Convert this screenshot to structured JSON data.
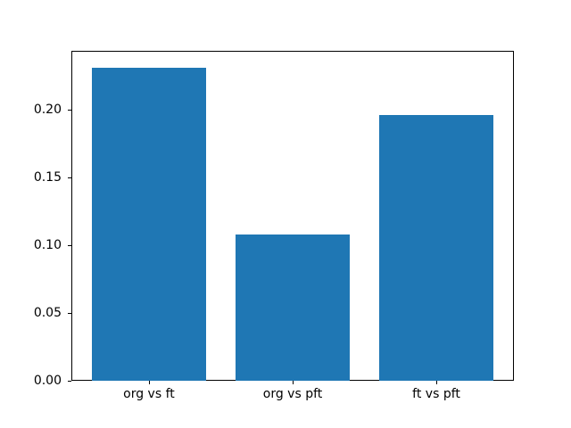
{
  "chart_data": {
    "type": "bar",
    "categories": [
      "org vs ft",
      "org vs pft",
      "ft vs pft"
    ],
    "values": [
      0.231,
      0.108,
      0.196
    ],
    "title": "",
    "xlabel": "",
    "ylabel": "",
    "ylim": [
      0,
      0.2434
    ],
    "yticks": [
      0.0,
      0.05,
      0.1,
      0.15,
      0.2
    ],
    "ytick_labels": [
      "0.00",
      "0.05",
      "0.10",
      "0.15",
      "0.20"
    ],
    "legend": null,
    "grid": false,
    "bar_color": "#1f77b4"
  },
  "figure": {
    "background": "#ffffff",
    "spine_color": "#000000",
    "text_color": "#000000"
  }
}
